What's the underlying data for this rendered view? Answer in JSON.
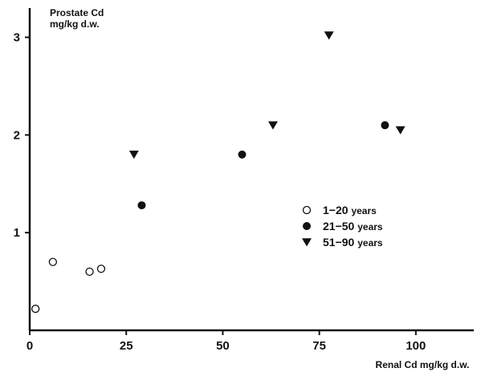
{
  "chart_data": {
    "type": "scatter",
    "title": "",
    "ylabel": [
      "Prostate Cd",
      "mg/kg d.w."
    ],
    "xlabel": "Renal Cd mg/kg d.w.",
    "xlim": [
      0,
      115
    ],
    "ylim": [
      0,
      3.3
    ],
    "xticks": [
      0,
      25,
      50,
      75,
      100
    ],
    "yticks": [
      1,
      2,
      3
    ],
    "x_tick_labels": [
      "0",
      "25",
      "50",
      "75",
      "100"
    ],
    "y_tick_labels": [
      "1",
      "2",
      "3"
    ],
    "grid": false,
    "legend_position": "right",
    "series": [
      {
        "name": "1-20 years",
        "label_main": "1−20",
        "label_unit": "years",
        "marker": "open-circle",
        "points": [
          [
            1.5,
            0.22
          ],
          [
            6,
            0.7
          ],
          [
            15.5,
            0.6
          ],
          [
            18.5,
            0.63
          ]
        ]
      },
      {
        "name": "21-50 years",
        "label_main": "21−50",
        "label_unit": "years",
        "marker": "filled-circle",
        "points": [
          [
            29,
            1.28
          ],
          [
            55,
            1.8
          ],
          [
            92,
            2.1
          ]
        ]
      },
      {
        "name": "51-90 years",
        "label_main": "51−90",
        "label_unit": "years",
        "marker": "filled-triangle-down",
        "points": [
          [
            27,
            1.8
          ],
          [
            63,
            2.1
          ],
          [
            77.5,
            3.02
          ],
          [
            96,
            2.05
          ]
        ]
      }
    ]
  }
}
